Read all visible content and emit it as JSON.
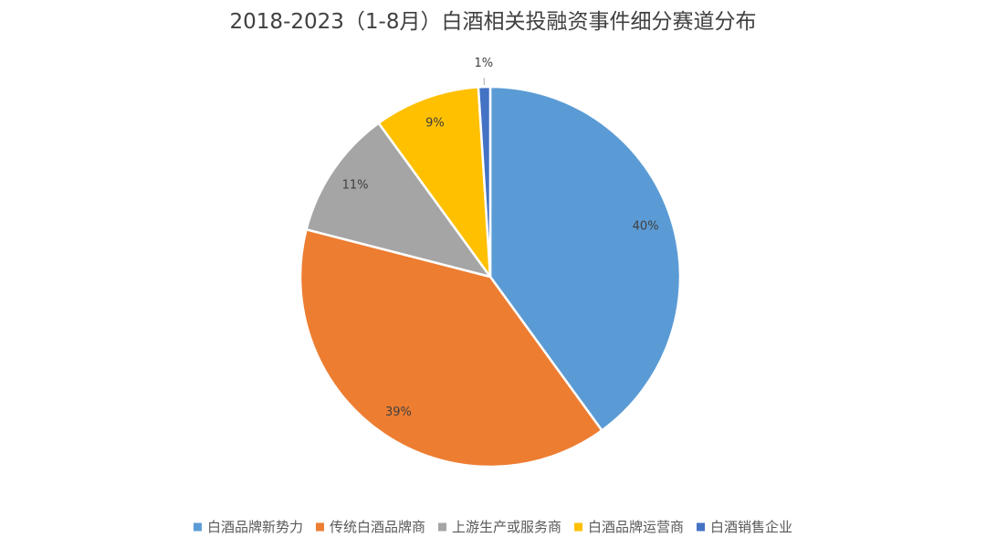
{
  "chart_data": {
    "type": "pie",
    "title": "2018-2023（1-8月）白酒相关投融资事件细分赛道分布",
    "categories": [
      "白酒品牌新势力",
      "传统白酒品牌商",
      "上游生产或服务商",
      "白酒品牌运营商",
      "白酒销售企业"
    ],
    "values": [
      40,
      39,
      11,
      9,
      1
    ],
    "labels": [
      "40%",
      "39%",
      "11%",
      "9%",
      "1%"
    ],
    "unit": "%",
    "colors": [
      "#5B9BD5",
      "#ED7D31",
      "#A5A5A5",
      "#FFC000",
      "#4472C4"
    ],
    "legend_position": "bottom",
    "start_angle": "12 o'clock",
    "direction": "clockwise"
  }
}
